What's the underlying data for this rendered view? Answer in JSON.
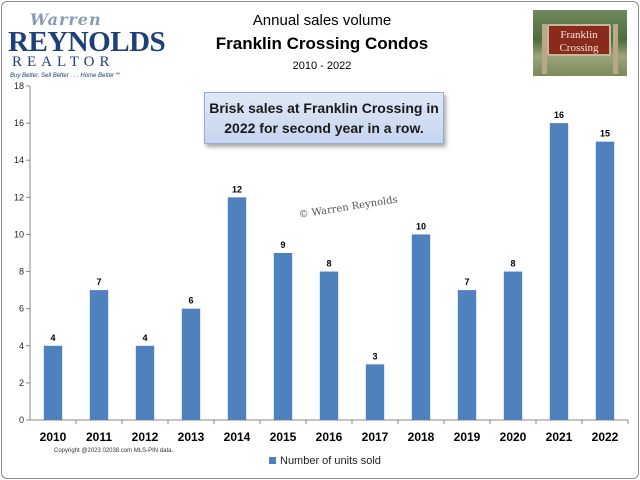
{
  "logo": {
    "line1": "Warren",
    "line2": "REYNOLDS",
    "line3": "REALTOR",
    "tagline": "Buy Better, Sell Better . . . Home Better℠"
  },
  "photo": {
    "sign_line1": "Franklin",
    "sign_line2": "Crossing"
  },
  "callout": "Brisk sales at Franklin Crossing in 2022 for second year in a row.",
  "watermark": "© Warren Reynolds",
  "copyright": "Copyright @2023 02038.com MLS-PIN data.",
  "colors": {
    "bar": "#4f81bd",
    "callout_bg": "#d3dff2"
  },
  "chart_data": {
    "type": "bar",
    "title": "Annual sales volume",
    "subtitle": "Franklin Crossing Condos",
    "date_range": "2010 - 2022",
    "categories": [
      "2010",
      "2011",
      "2012",
      "2013",
      "2014",
      "2015",
      "2016",
      "2017",
      "2018",
      "2019",
      "2020",
      "2021",
      "2022"
    ],
    "series": [
      {
        "name": "Number of units sold",
        "values": [
          4,
          7,
          4,
          6,
          12,
          9,
          8,
          3,
          10,
          7,
          8,
          16,
          15
        ]
      }
    ],
    "ylim": [
      0,
      18
    ],
    "yticks": [
      "0",
      "2",
      "4",
      "6",
      "8",
      "10",
      "12",
      "14",
      "16",
      "18"
    ],
    "grid": false,
    "legend": "bottom",
    "data_labels": true
  }
}
